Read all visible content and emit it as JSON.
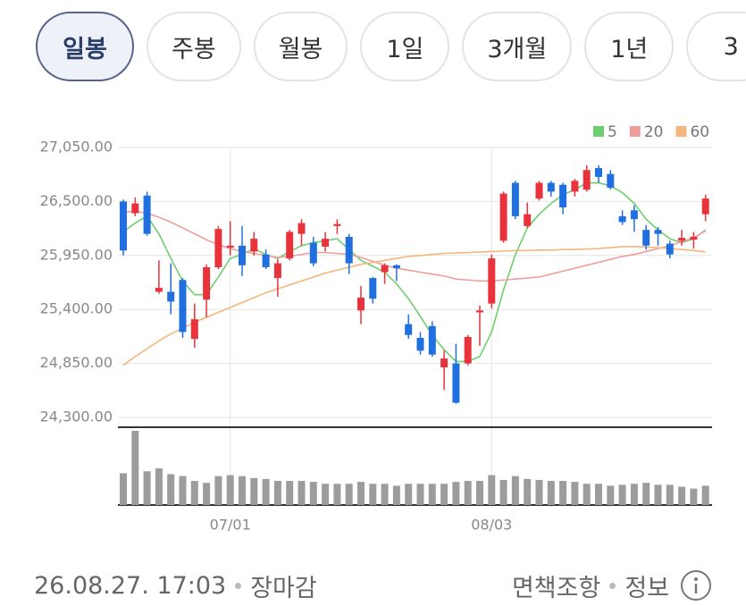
{
  "tabs": [
    "일봉",
    "주봉",
    "월봉",
    "1일",
    "3개월",
    "1년",
    "3"
  ],
  "selected_tab": 0,
  "chart_data": {
    "type": "candlestick",
    "categories": [
      null,
      null,
      null,
      null,
      null,
      null,
      null,
      null,
      null,
      "07/01",
      null,
      null,
      null,
      null,
      null,
      null,
      null,
      null,
      null,
      null,
      null,
      null,
      null,
      null,
      null,
      null,
      null,
      null,
      null,
      null,
      null,
      "08/03",
      null,
      null,
      null,
      null,
      null,
      null,
      null,
      null,
      null,
      null,
      null,
      null,
      null,
      null,
      null,
      null,
      null,
      null
    ],
    "open": [
      26500,
      26380,
      26560,
      25580,
      25580,
      25700,
      25100,
      25500,
      25830,
      26030,
      26050,
      25990,
      25960,
      25720,
      25920,
      26170,
      26080,
      26040,
      26250,
      26140,
      25390,
      25720,
      25780,
      25850,
      25250,
      25110,
      25230,
      24810,
      24850,
      24850,
      25370,
      25460,
      26100,
      26690,
      26250,
      26530,
      26690,
      26670,
      26600,
      26620,
      26840,
      26780,
      26350,
      26410,
      26210,
      26210,
      26070,
      26100,
      26110,
      26370
    ],
    "high": [
      26520,
      26540,
      26600,
      25900,
      25870,
      25720,
      25460,
      25860,
      26250,
      26300,
      26250,
      26190,
      26010,
      25910,
      26210,
      26320,
      26140,
      26190,
      26320,
      26170,
      25640,
      25730,
      25870,
      25860,
      25350,
      25170,
      25280,
      24980,
      25050,
      25140,
      25440,
      25960,
      26600,
      26710,
      26490,
      26710,
      26710,
      26690,
      26730,
      26870,
      26870,
      26820,
      26410,
      26460,
      26260,
      26240,
      26100,
      26210,
      26190,
      26570
    ],
    "low": [
      25950,
      26350,
      26150,
      25560,
      25350,
      25110,
      25010,
      25320,
      25810,
      25950,
      25740,
      25950,
      25810,
      25530,
      25900,
      26050,
      25840,
      25990,
      26170,
      25760,
      25250,
      25460,
      25660,
      25690,
      25100,
      24940,
      24920,
      24580,
      24440,
      24830,
      25030,
      25410,
      26080,
      26320,
      26230,
      26510,
      26550,
      26370,
      26550,
      26600,
      26690,
      26620,
      26260,
      26190,
      26010,
      26050,
      25920,
      26050,
      26020,
      26300
    ],
    "close": [
      26000,
      26480,
      26170,
      25620,
      25480,
      25170,
      25300,
      25830,
      26220,
      26050,
      25850,
      26120,
      25830,
      25870,
      26190,
      26280,
      25870,
      26120,
      26270,
      25870,
      25520,
      25510,
      25850,
      25820,
      25140,
      24980,
      24940,
      24900,
      24450,
      25120,
      25390,
      25920,
      26580,
      26350,
      26370,
      26690,
      26600,
      26440,
      26710,
      26820,
      26750,
      26640,
      26290,
      26320,
      26050,
      26170,
      25960,
      26130,
      26140,
      26530
    ],
    "up_color": "#e8333c",
    "down_color": "#1f6fe0",
    "series": [
      {
        "name": "5",
        "color": "#6fcf6f",
        "values": [
          26190,
          26280,
          26350,
          26170,
          25920,
          25690,
          25550,
          25550,
          25730,
          25920,
          25960,
          26020,
          25960,
          25920,
          25990,
          26050,
          26080,
          26100,
          26120,
          26010,
          25900,
          25840,
          25780,
          25660,
          25510,
          25330,
          25140,
          24990,
          24870,
          24870,
          24920,
          25170,
          25600,
          25960,
          26230,
          26370,
          26480,
          26570,
          26620,
          26690,
          26690,
          26660,
          26590,
          26480,
          26320,
          26210,
          26120,
          26080,
          26120,
          26210
        ]
      },
      {
        "name": "20",
        "color": "#ef9e9e",
        "values": [
          26390,
          26400,
          26380,
          26340,
          26290,
          26230,
          26170,
          26110,
          26060,
          26020,
          25990,
          25970,
          25950,
          25930,
          25940,
          25960,
          25980,
          25980,
          25970,
          25960,
          25930,
          25890,
          25850,
          25820,
          25800,
          25780,
          25760,
          25740,
          25710,
          25700,
          25690,
          25690,
          25700,
          25710,
          25720,
          25730,
          25760,
          25790,
          25820,
          25850,
          25880,
          25910,
          25940,
          25960,
          25990,
          26020,
          26050,
          26090,
          26130,
          26200
        ]
      },
      {
        "name": "60",
        "color": "#f4b67c",
        "values": [
          24830,
          24920,
          25000,
          25080,
          25150,
          25210,
          25270,
          25320,
          25370,
          25420,
          25470,
          25520,
          25570,
          25610,
          25650,
          25690,
          25730,
          25770,
          25800,
          25830,
          25860,
          25880,
          25900,
          25920,
          25940,
          25950,
          25960,
          25970,
          25975,
          25980,
          25985,
          25990,
          25995,
          26000,
          26000,
          26005,
          26005,
          26010,
          26010,
          26015,
          26020,
          26030,
          26040,
          26040,
          26035,
          26030,
          26020,
          26010,
          26000,
          25985
        ]
      }
    ],
    "volume": {
      "color": "#9c9c9c",
      "values": [
        33,
        77,
        35,
        38,
        32,
        30,
        25,
        23,
        30,
        31,
        30,
        28,
        27,
        25,
        25,
        25,
        24,
        22,
        22,
        22,
        24,
        22,
        22,
        20,
        22,
        22,
        22,
        22,
        24,
        25,
        25,
        31,
        26,
        30,
        27,
        26,
        25,
        25,
        24,
        22,
        22,
        20,
        21,
        22,
        23,
        21,
        21,
        19,
        17,
        20
      ]
    },
    "ylim": [
      24200,
      27050
    ],
    "yticks": [
      {
        "value": 24300,
        "label": "24,300.00"
      },
      {
        "value": 24850,
        "label": "24,850.00"
      },
      {
        "value": 25400,
        "label": "25,400.00"
      },
      {
        "value": 25950,
        "label": "25,950.00"
      },
      {
        "value": 26500,
        "label": "26,500.00"
      },
      {
        "value": 27050,
        "label": "27,050.00"
      }
    ],
    "grid": true
  },
  "footer": {
    "timestamp": "26.08.27. 17:03",
    "status": "장마감",
    "disclaimer": "면책조항",
    "info": "정보"
  }
}
